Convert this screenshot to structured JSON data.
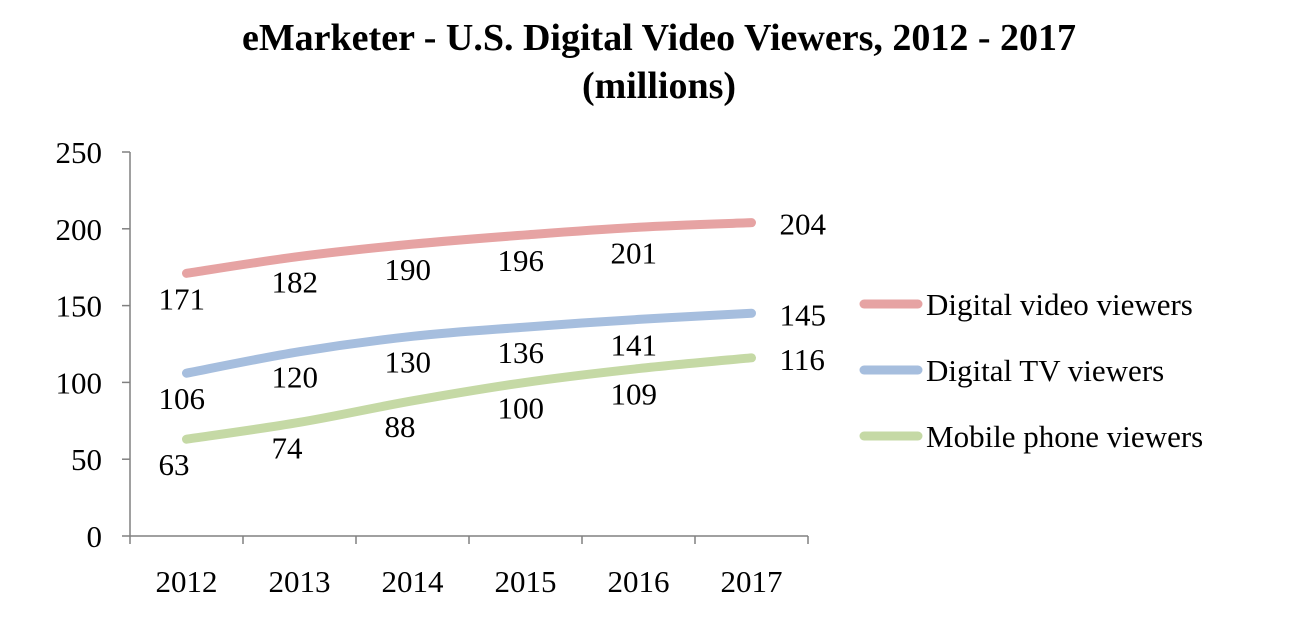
{
  "chart_data": {
    "type": "line",
    "title": "eMarketer - U.S. Digital Video Viewers, 2012 - 2017",
    "subtitle": "(millions)",
    "xlabel": "",
    "ylabel": "",
    "categories": [
      "2012",
      "2013",
      "2014",
      "2015",
      "2016",
      "2017"
    ],
    "ylim": [
      0,
      250
    ],
    "yticks": [
      "0",
      "50",
      "100",
      "150",
      "200",
      "250"
    ],
    "grid": false,
    "legend_position": "right",
    "series": [
      {
        "name": "Digital video viewers",
        "color": "#E6A3A3",
        "values": [
          171,
          182,
          190,
          196,
          201,
          204
        ]
      },
      {
        "name": "Digital TV viewers",
        "color": "#A6BEDE",
        "values": [
          106,
          120,
          130,
          136,
          141,
          145
        ]
      },
      {
        "name": "Mobile phone viewers",
        "color": "#C5D9A5",
        "values": [
          63,
          74,
          88,
          100,
          109,
          116
        ]
      }
    ]
  }
}
